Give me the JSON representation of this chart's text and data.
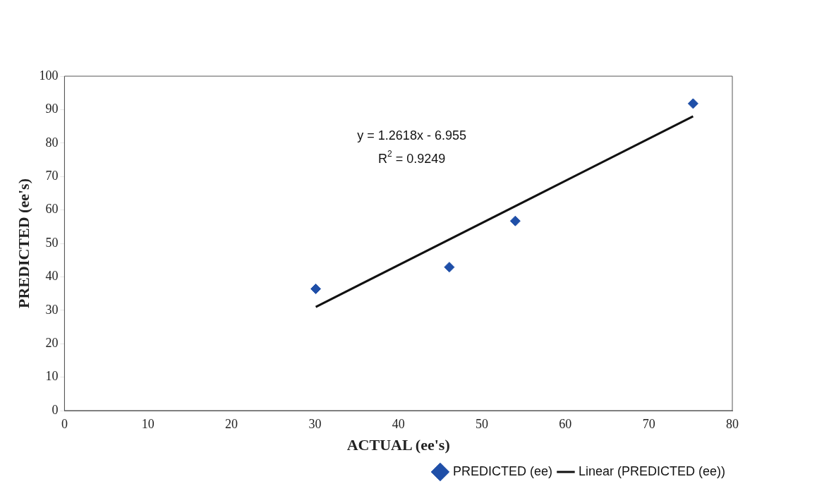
{
  "chart_data": {
    "type": "scatter",
    "xlabel": "ACTUAL (ee's)",
    "ylabel": "PREDICTED (ee's)",
    "xlim": [
      0,
      80
    ],
    "xticks": [
      0,
      10,
      20,
      30,
      40,
      50,
      60,
      70,
      80
    ],
    "ylim": [
      0,
      100
    ],
    "yticks": [
      0,
      10,
      20,
      30,
      40,
      50,
      60,
      70,
      80,
      90,
      100
    ],
    "grid": false,
    "legend": "bottom right",
    "marker": "diamond",
    "series": [
      {
        "name": "PREDICTED (ee)",
        "color": "#1f4fa8",
        "x": [
          30.1,
          46.1,
          54.0,
          75.3
        ],
        "values": [
          36.4,
          42.9,
          56.7,
          91.8
        ]
      },
      {
        "name": "Linear (PREDICTED (ee))",
        "type": "line",
        "color": "#111111",
        "marker": "none",
        "x": [
          30.1,
          75.3
        ],
        "values": [
          31.0,
          88.0
        ]
      }
    ],
    "annotations": [
      "y = 1.2618x - 6.955",
      "R$^{2}$ = 0.9249"
    ]
  }
}
